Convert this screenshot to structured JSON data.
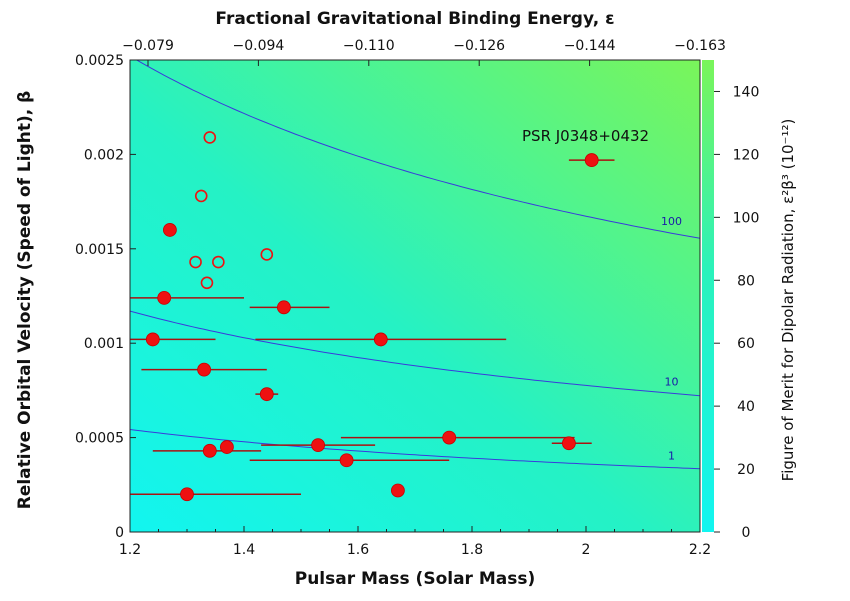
{
  "chart_data": {
    "type": "scatter",
    "xlabel": "Pulsar Mass (Solar Mass)",
    "ylabel": "Relative Orbital Velocity (Speed of Light), β",
    "top_axis_label": "Fractional Gravitational Binding Energy, ε",
    "right_axis_label": "Figure of Merit for Dipolar Radiation, ε²β³ (10⁻¹²)",
    "xlim": [
      1.2,
      2.2
    ],
    "ylim": [
      0,
      0.0025
    ],
    "colorbar_lim": [
      0,
      150
    ],
    "x_ticks": [
      "1.2",
      "1.4",
      "1.6",
      "1.8",
      "2",
      "2.2"
    ],
    "y_ticks": [
      "0",
      "0.0005",
      "0.001",
      "0.0015",
      "0.002",
      "0.0025"
    ],
    "top_ticks": [
      "−0.079",
      "−0.094",
      "−0.110",
      "−0.126",
      "−0.144",
      "−0.163"
    ],
    "right_ticks": [
      "0",
      "20",
      "40",
      "60",
      "80",
      "100",
      "120",
      "140"
    ],
    "annotation": "PSR J0348+0432",
    "contours": [
      {
        "label": "100",
        "level": 100
      },
      {
        "label": "10",
        "level": 10
      },
      {
        "label": "1",
        "level": 1
      }
    ],
    "filled_points": [
      {
        "x": 2.01,
        "y": 0.00197,
        "xerr": [
          1.97,
          2.05
        ]
      },
      {
        "x": 1.27,
        "y": 0.0016,
        "xerr": null
      },
      {
        "x": 1.26,
        "y": 0.00124,
        "xerr": [
          1.2,
          1.4
        ]
      },
      {
        "x": 1.47,
        "y": 0.00119,
        "xerr": [
          1.41,
          1.55
        ]
      },
      {
        "x": 1.24,
        "y": 0.00102,
        "xerr": [
          1.2,
          1.35
        ]
      },
      {
        "x": 1.64,
        "y": 0.00102,
        "xerr": [
          1.42,
          1.86
        ]
      },
      {
        "x": 1.33,
        "y": 0.00086,
        "xerr": [
          1.22,
          1.44
        ]
      },
      {
        "x": 1.44,
        "y": 0.00073,
        "xerr": [
          1.42,
          1.46
        ]
      },
      {
        "x": 1.76,
        "y": 0.0005,
        "xerr": [
          1.57,
          1.98
        ]
      },
      {
        "x": 1.97,
        "y": 0.00047,
        "xerr": [
          1.94,
          2.01
        ]
      },
      {
        "x": 1.53,
        "y": 0.00046,
        "xerr": [
          1.43,
          1.63
        ]
      },
      {
        "x": 1.37,
        "y": 0.00045,
        "xerr": null
      },
      {
        "x": 1.34,
        "y": 0.00043,
        "xerr": [
          1.24,
          1.43
        ]
      },
      {
        "x": 1.58,
        "y": 0.00038,
        "xerr": [
          1.41,
          1.76
        ]
      },
      {
        "x": 1.3,
        "y": 0.0002,
        "xerr": [
          1.2,
          1.5
        ]
      },
      {
        "x": 1.67,
        "y": 0.00022,
        "xerr": null
      }
    ],
    "open_points": [
      {
        "x": 1.34,
        "y": 0.00209
      },
      {
        "x": 1.325,
        "y": 0.00178
      },
      {
        "x": 1.315,
        "y": 0.00143
      },
      {
        "x": 1.355,
        "y": 0.00143
      },
      {
        "x": 1.335,
        "y": 0.00132
      },
      {
        "x": 1.44,
        "y": 0.00147
      }
    ],
    "colors": {
      "marker": "#ee1111",
      "errorbar": "#aa1111",
      "contour": "#3a3adc",
      "gradient_low": "#12f5f0",
      "gradient_high": "#7af55a"
    }
  }
}
